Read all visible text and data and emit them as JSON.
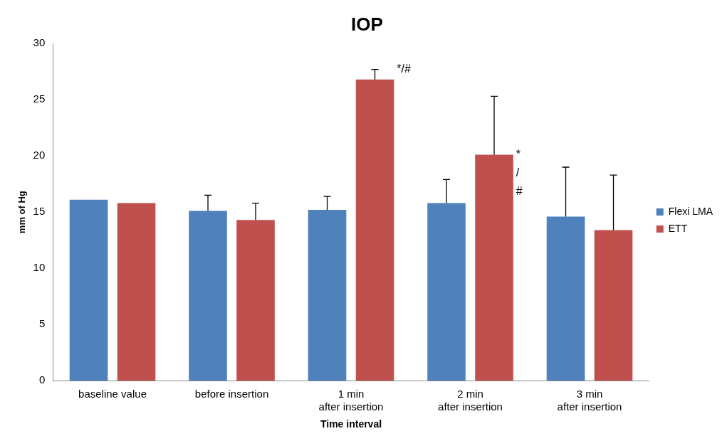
{
  "chart_data": {
    "type": "bar",
    "title": "IOP",
    "xlabel": "Time interval",
    "ylabel": "mm of Hg",
    "categories": [
      "baseline value",
      "before insertion",
      "1 min after insertion",
      "2 min after insertion",
      "3 min after insertion"
    ],
    "series": [
      {
        "name": "Flexi LMA",
        "color": "#4f81bd",
        "values": [
          16.1,
          15.1,
          15.2,
          15.8,
          14.6
        ],
        "errors": [
          null,
          [
            15.1,
            16.5
          ],
          [
            15.2,
            16.4
          ],
          [
            15.8,
            17.9
          ],
          [
            14.6,
            19.0
          ]
        ]
      },
      {
        "name": "ETT",
        "color": "#c0504d",
        "values": [
          15.8,
          14.3,
          26.8,
          20.1,
          13.4
        ],
        "errors": [
          null,
          [
            14.3,
            15.8
          ],
          [
            26.8,
            27.7
          ],
          [
            20.1,
            25.3
          ],
          [
            13.4,
            18.3
          ]
        ]
      }
    ],
    "annotations": [
      "*/#",
      "*\n/\n#"
    ],
    "ylim": [
      0,
      30
    ],
    "yticks": [
      0,
      5,
      10,
      15,
      20,
      25,
      30
    ],
    "grid": false,
    "legend": "right"
  }
}
